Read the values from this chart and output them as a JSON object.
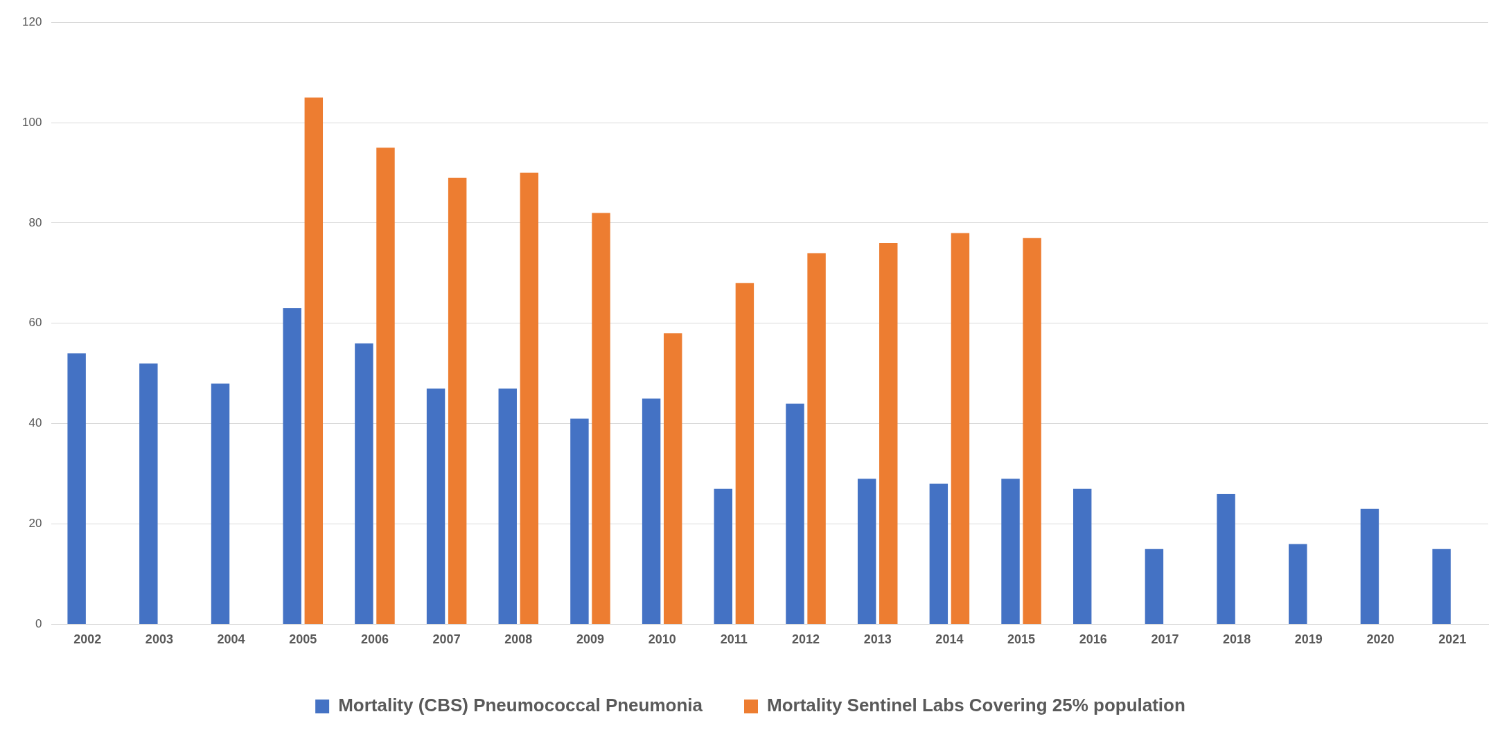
{
  "chart_data": {
    "type": "bar",
    "categories": [
      "2002",
      "2003",
      "2004",
      "2005",
      "2006",
      "2007",
      "2008",
      "2009",
      "2010",
      "2011",
      "2012",
      "2013",
      "2014",
      "2015",
      "2016",
      "2017",
      "2018",
      "2019",
      "2020",
      "2021"
    ],
    "series": [
      {
        "name": "Mortality (CBS) Pneumococcal Pneumonia",
        "color": "#4472c4",
        "values": [
          54,
          52,
          48,
          63,
          56,
          47,
          47,
          41,
          45,
          27,
          44,
          29,
          28,
          29,
          27,
          15,
          26,
          16,
          23,
          15
        ]
      },
      {
        "name": "Mortality Sentinel Labs Covering 25% population",
        "color": "#ed7d31",
        "values": [
          null,
          null,
          null,
          105,
          95,
          89,
          90,
          82,
          58,
          68,
          74,
          76,
          78,
          77,
          null,
          null,
          null,
          null,
          null,
          null
        ]
      }
    ],
    "ylim": [
      0,
      120
    ],
    "yticks": [
      0,
      20,
      40,
      60,
      80,
      100,
      120
    ],
    "grid": "y",
    "legend": "bottom"
  }
}
